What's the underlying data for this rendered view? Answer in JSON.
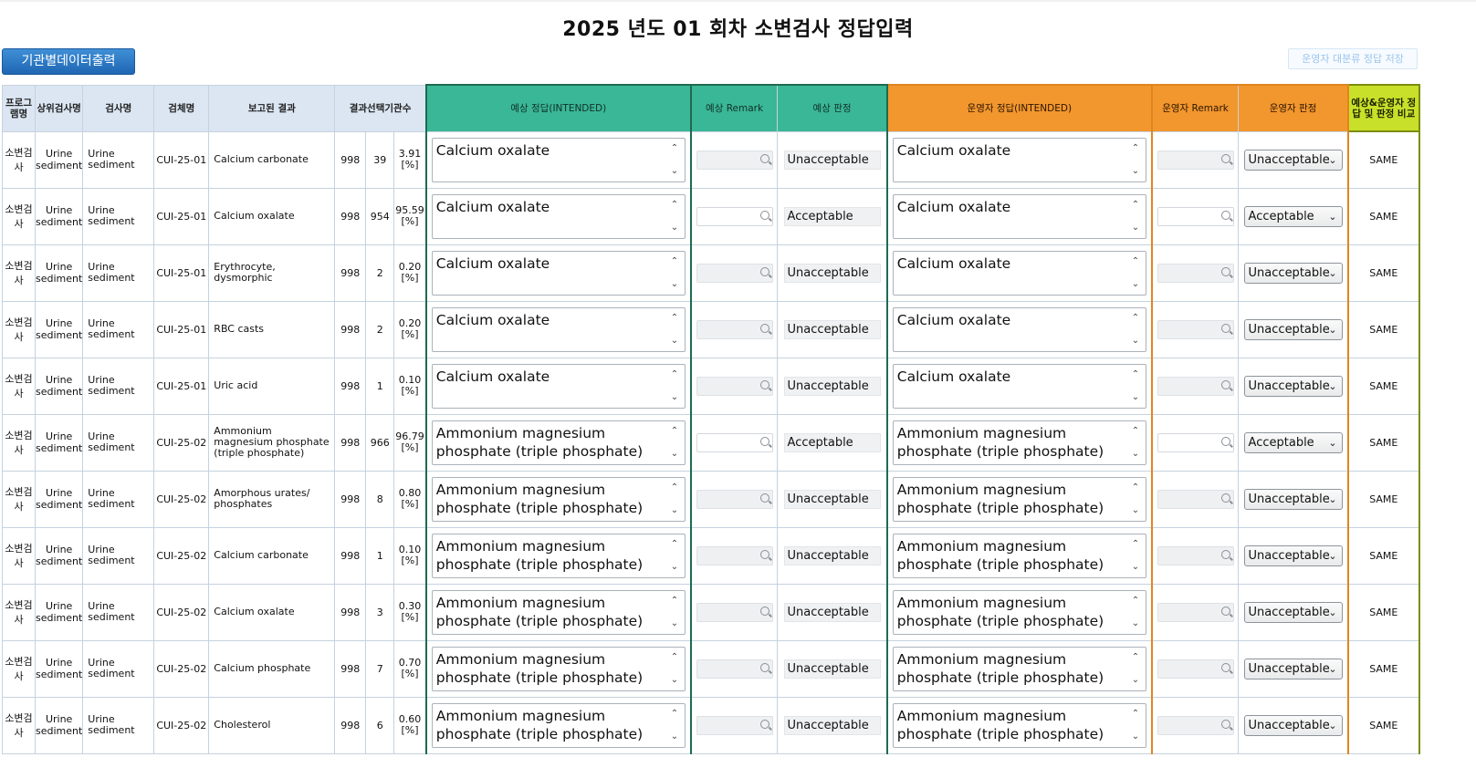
{
  "title": "2025 년도 01 회차 소변검사 정답입력",
  "buttons": {
    "export": "기관별데이터출력",
    "save": "운영자 대분류 정답 저장"
  },
  "headers": {
    "program": "프로그램명",
    "category": "상위검사명",
    "test": "검사명",
    "specimen": "검체명",
    "reported": "보고된 결과",
    "count": "결과선택기관수",
    "exp_answer": "예상 정답(INTENDED)",
    "exp_remark": "예상 Remark",
    "exp_judge": "예상 판정",
    "op_answer": "운영자 정답(INTENDED)",
    "op_remark": "운영자 Remark",
    "op_judge": "운영자 판정",
    "compare": "예상&운영자 정답 및 판정 비교"
  },
  "icons": {
    "search": "search-icon",
    "chevron": "chevron-down-icon"
  },
  "colors": {
    "expected": "#3ab796",
    "operator": "#f2962e",
    "compare": "#c9e02a",
    "header": "#dbe6f2",
    "button": "#2a78c8"
  },
  "rows": [
    {
      "program": "소변검사",
      "category": "Urine sediment",
      "test": "Urine sediment",
      "specimen": "CUI-25-01",
      "result": "Calcium carbonate",
      "total": "998",
      "count": "39",
      "pct": "3.91",
      "unit": "[%]",
      "exp_answer": "Calcium oxalate",
      "exp_judge": "Unacceptable",
      "op_answer": "Calcium oxalate",
      "op_judge": "Unacceptable",
      "compare": "SAME"
    },
    {
      "program": "소변검사",
      "category": "Urine sediment",
      "test": "Urine sediment",
      "specimen": "CUI-25-01",
      "result": "Calcium oxalate",
      "total": "998",
      "count": "954",
      "pct": "95.59",
      "unit": "[%]",
      "exp_answer": "Calcium oxalate",
      "exp_judge": "Acceptable",
      "op_answer": "Calcium oxalate",
      "op_judge": "Acceptable",
      "compare": "SAME"
    },
    {
      "program": "소변검사",
      "category": "Urine sediment",
      "test": "Urine sediment",
      "specimen": "CUI-25-01",
      "result": "Erythrocyte, dysmorphic",
      "total": "998",
      "count": "2",
      "pct": "0.20",
      "unit": "[%]",
      "exp_answer": "Calcium oxalate",
      "exp_judge": "Unacceptable",
      "op_answer": "Calcium oxalate",
      "op_judge": "Unacceptable",
      "compare": "SAME"
    },
    {
      "program": "소변검사",
      "category": "Urine sediment",
      "test": "Urine sediment",
      "specimen": "CUI-25-01",
      "result": "RBC casts",
      "total": "998",
      "count": "2",
      "pct": "0.20",
      "unit": "[%]",
      "exp_answer": "Calcium oxalate",
      "exp_judge": "Unacceptable",
      "op_answer": "Calcium oxalate",
      "op_judge": "Unacceptable",
      "compare": "SAME"
    },
    {
      "program": "소변검사",
      "category": "Urine sediment",
      "test": "Urine sediment",
      "specimen": "CUI-25-01",
      "result": "Uric acid",
      "total": "998",
      "count": "1",
      "pct": "0.10",
      "unit": "[%]",
      "exp_answer": "Calcium oxalate",
      "exp_judge": "Unacceptable",
      "op_answer": "Calcium oxalate",
      "op_judge": "Unacceptable",
      "compare": "SAME"
    },
    {
      "program": "소변검사",
      "category": "Urine sediment",
      "test": "Urine sediment",
      "specimen": "CUI-25-02",
      "result": "Ammonium magnesium phosphate (triple phosphate)",
      "total": "998",
      "count": "966",
      "pct": "96.79",
      "unit": "[%]",
      "exp_answer": "Ammonium magnesium phosphate (triple phosphate)",
      "exp_judge": "Acceptable",
      "op_answer": "Ammonium magnesium phosphate (triple phosphate)",
      "op_judge": "Acceptable",
      "compare": "SAME"
    },
    {
      "program": "소변검사",
      "category": "Urine sediment",
      "test": "Urine sediment",
      "specimen": "CUI-25-02",
      "result": "Amorphous urates/ phosphates",
      "total": "998",
      "count": "8",
      "pct": "0.80",
      "unit": "[%]",
      "exp_answer": "Ammonium magnesium phosphate (triple phosphate)",
      "exp_judge": "Unacceptable",
      "op_answer": "Ammonium magnesium phosphate (triple phosphate)",
      "op_judge": "Unacceptable",
      "compare": "SAME"
    },
    {
      "program": "소변검사",
      "category": "Urine sediment",
      "test": "Urine sediment",
      "specimen": "CUI-25-02",
      "result": "Calcium carbonate",
      "total": "998",
      "count": "1",
      "pct": "0.10",
      "unit": "[%]",
      "exp_answer": "Ammonium magnesium phosphate (triple phosphate)",
      "exp_judge": "Unacceptable",
      "op_answer": "Ammonium magnesium phosphate (triple phosphate)",
      "op_judge": "Unacceptable",
      "compare": "SAME"
    },
    {
      "program": "소변검사",
      "category": "Urine sediment",
      "test": "Urine sediment",
      "specimen": "CUI-25-02",
      "result": "Calcium oxalate",
      "total": "998",
      "count": "3",
      "pct": "0.30",
      "unit": "[%]",
      "exp_answer": "Ammonium magnesium phosphate (triple phosphate)",
      "exp_judge": "Unacceptable",
      "op_answer": "Ammonium magnesium phosphate (triple phosphate)",
      "op_judge": "Unacceptable",
      "compare": "SAME"
    },
    {
      "program": "소변검사",
      "category": "Urine sediment",
      "test": "Urine sediment",
      "specimen": "CUI-25-02",
      "result": "Calcium phosphate",
      "total": "998",
      "count": "7",
      "pct": "0.70",
      "unit": "[%]",
      "exp_answer": "Ammonium magnesium phosphate (triple phosphate)",
      "exp_judge": "Unacceptable",
      "op_answer": "Ammonium magnesium phosphate (triple phosphate)",
      "op_judge": "Unacceptable",
      "compare": "SAME"
    },
    {
      "program": "소변검사",
      "category": "Urine sediment",
      "test": "Urine sediment",
      "specimen": "CUI-25-02",
      "result": "Cholesterol",
      "total": "998",
      "count": "6",
      "pct": "0.60",
      "unit": "[%]",
      "exp_answer": "Ammonium magnesium phosphate (triple phosphate)",
      "exp_judge": "Unacceptable",
      "op_answer": "Ammonium magnesium phosphate (triple phosphate)",
      "op_judge": "Unacceptable",
      "compare": "SAME"
    }
  ]
}
